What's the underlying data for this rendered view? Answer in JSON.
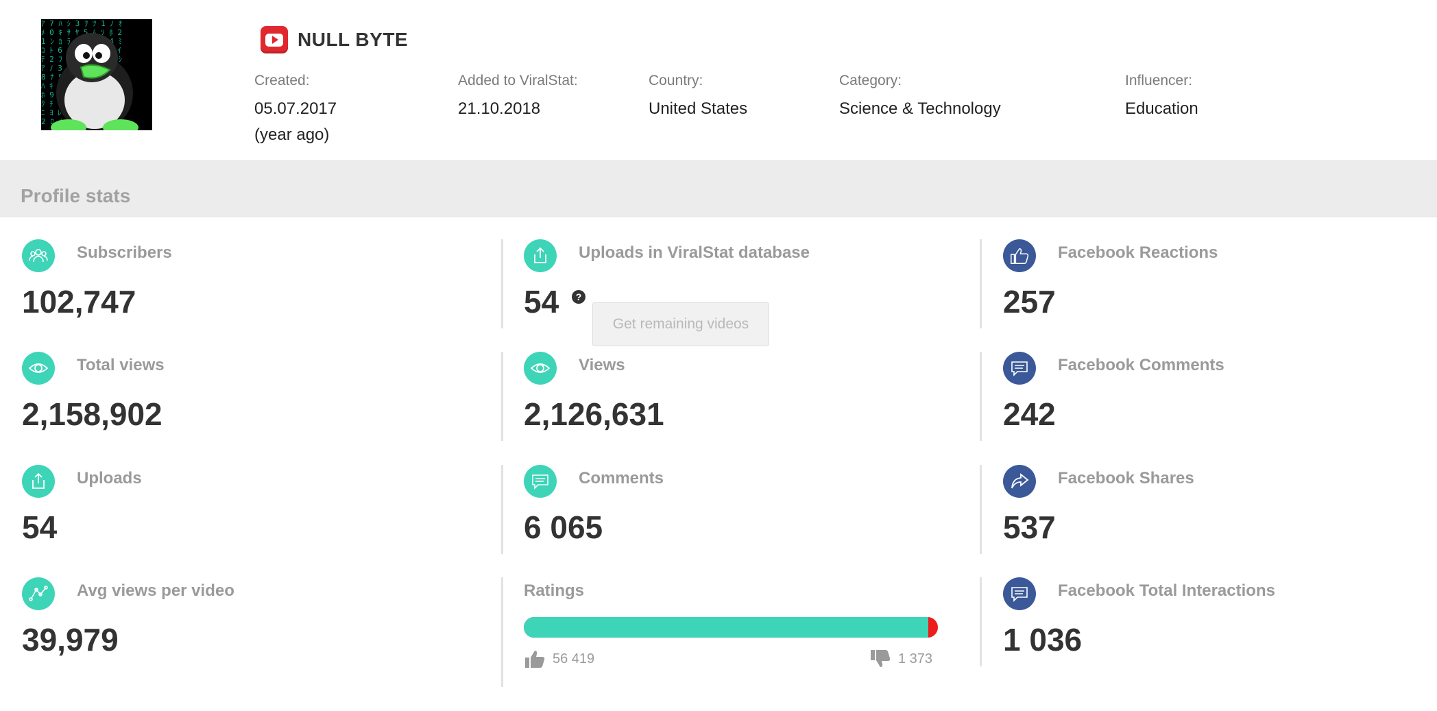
{
  "channel": {
    "name": "NULL BYTE",
    "platform_icon": "youtube-icon",
    "avatar_icon": "penguin-avatar",
    "meta": [
      {
        "label": "Created:",
        "value": "05.07.2017",
        "sub": "(year ago)"
      },
      {
        "label": "Added to ViralStat:",
        "value": "21.10.2018"
      },
      {
        "label": "Country:",
        "value": "United States"
      },
      {
        "label": "Category:",
        "value": "Science & Technology"
      },
      {
        "label": "Influencer:",
        "value": "Education"
      }
    ]
  },
  "profile_stats": {
    "title": "Profile stats",
    "col1": [
      {
        "icon": "subscribers-icon",
        "label": "Subscribers",
        "value": "102,747"
      },
      {
        "icon": "eye-icon",
        "label": "Total views",
        "value": "2,158,902"
      },
      {
        "icon": "upload-icon",
        "label": "Uploads",
        "value": "54"
      },
      {
        "icon": "trend-line-icon",
        "label": "Avg views per video",
        "value": "39,979"
      }
    ],
    "col2": [
      {
        "icon": "upload-icon",
        "label": "Uploads in ViralStat database",
        "value": "54",
        "help": "?",
        "button": "Get remaining videos"
      },
      {
        "icon": "eye-icon",
        "label": "Views",
        "value": "2,126,631"
      },
      {
        "icon": "comment-icon",
        "label": "Comments",
        "value": "6 065"
      }
    ],
    "ratings": {
      "label": "Ratings",
      "likes": "56 419",
      "dislikes": "1 373",
      "like_fraction": 0.976,
      "like_color": "#3ed4b8",
      "dislike_color": "#ee1c1c"
    },
    "col3": [
      {
        "icon": "thumbs-up-icon",
        "label": "Facebook Reactions",
        "value": "257"
      },
      {
        "icon": "comment-icon",
        "label": "Facebook Comments",
        "value": "242"
      },
      {
        "icon": "share-icon",
        "label": "Facebook Shares",
        "value": "537"
      },
      {
        "icon": "comment-icon",
        "label": "Facebook Total Interactions",
        "value": "1 036"
      }
    ]
  },
  "colors": {
    "teal": "#3ed4b8",
    "facebook_blue": "#3b5998",
    "youtube_red": "#e0282f"
  }
}
